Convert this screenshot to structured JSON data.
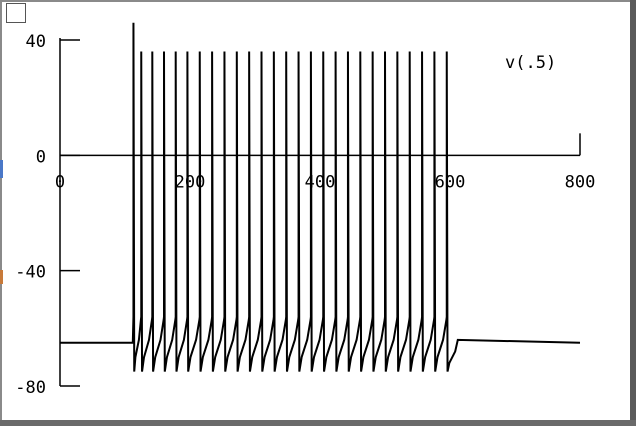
{
  "window": {
    "toggle_box": "checkbox-square"
  },
  "chart_data": {
    "type": "line",
    "title": "",
    "xlabel": "",
    "ylabel": "",
    "xlim": [
      0,
      800
    ],
    "ylim": [
      -80,
      40
    ],
    "x_ticks": [
      "0",
      "200",
      "400",
      "600",
      "800"
    ],
    "y_ticks": [
      "40",
      "0",
      "-40",
      "-80"
    ],
    "grid": false,
    "series": [
      {
        "name": "v(.5)",
        "rest_value": -65,
        "stim_start": 113,
        "stim_end": 608,
        "spike_times": [
          113,
          125,
          142,
          160,
          178,
          196,
          215,
          234,
          253,
          272,
          291,
          310,
          329,
          348,
          367,
          386,
          405,
          424,
          443,
          462,
          481,
          500,
          519,
          538,
          557,
          576,
          595
        ],
        "spike_peak": 36,
        "first_spike_peak": 46,
        "trough_value": -75,
        "end_value": -65,
        "color": "#000000"
      }
    ]
  }
}
